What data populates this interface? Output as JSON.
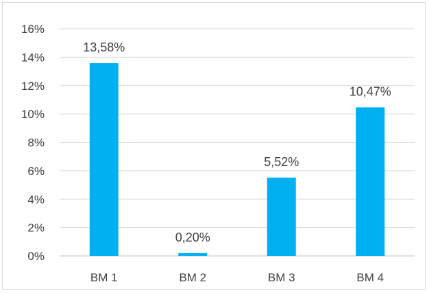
{
  "chart_data": {
    "type": "bar",
    "title": "",
    "xlabel": "",
    "ylabel": "",
    "categories": [
      "BM 1",
      "BM 2",
      "BM 3",
      "BM 4"
    ],
    "values": [
      13.58,
      0.2,
      5.52,
      10.47
    ],
    "data_labels": [
      "13,58%",
      "0,20%",
      "5,52%",
      "10,47%"
    ],
    "ylim": [
      0,
      16
    ],
    "y_ticks": [
      0,
      2,
      4,
      6,
      8,
      10,
      12,
      14,
      16
    ],
    "y_tick_labels": [
      "0%",
      "2%",
      "4%",
      "6%",
      "8%",
      "10%",
      "12%",
      "14%",
      "16%"
    ],
    "grid": true,
    "bar_color": "#00b0f0",
    "grid_color": "#d9d9d9",
    "axis_color": "#bfbfbf",
    "text_color": "#404040"
  }
}
